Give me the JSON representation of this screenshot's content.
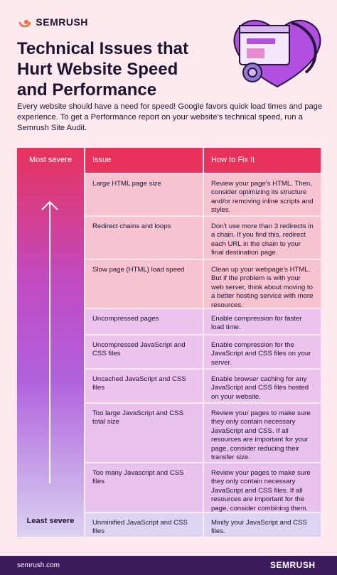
{
  "header": {
    "logo": "SEMRUSH",
    "title_lines": [
      "Technical Issues that",
      "Hurt Website Speed",
      "and Performance"
    ],
    "intro": "Every website should have a need for speed! Google favors quick load times and page experience. To get a Performance report on your website's technical speed, run a Semrush Site Audit."
  },
  "table": {
    "severity_top": "Most severe",
    "severity_bottom": "Least severe",
    "columns": [
      "Issue",
      "How to Fix It"
    ],
    "rows": [
      [
        "Large HTML page size",
        "Review your page's HTML. Then, consider optimizing its structure and/or removing inline scripts and styles."
      ],
      [
        "Redirect chains and loops",
        "Don't use more than 3 redirects in a chain. If you find this, redirect each URL in the chain to your final destination page."
      ],
      [
        "Slow page (HTML) load speed",
        "Clean up your webpage's HTML. But if the problem is with your web server, think about moving to a better hosting service with more resources."
      ],
      [
        "Uncompressed pages",
        "Enable compression for faster load time."
      ],
      [
        "Uncompressed JavaScript and CSS files",
        "Enable compression for the JavaScript and CSS files on your server."
      ],
      [
        "Uncached JavaScript and CSS files",
        "Enable browser caching for any JavaScript and CSS files hosted on your website."
      ],
      [
        "Too large JavaScript and CSS total size",
        "Review your pages to make sure they only contain necessary JavaScript and CSS. If all resources are important for your page, consider reducing their transfer size."
      ],
      [
        "Too many Javascript and CSS files",
        "Review your pages to make sure they only contain necessary JavaScript and CSS files. If all resources are important for the page, consider combining them."
      ],
      [
        "Unminified JavaScript and CSS files",
        "Minify your JavaScript and CSS files."
      ]
    ]
  },
  "footer": {
    "url": "semrush.com",
    "logo": "SEMRUSH"
  }
}
